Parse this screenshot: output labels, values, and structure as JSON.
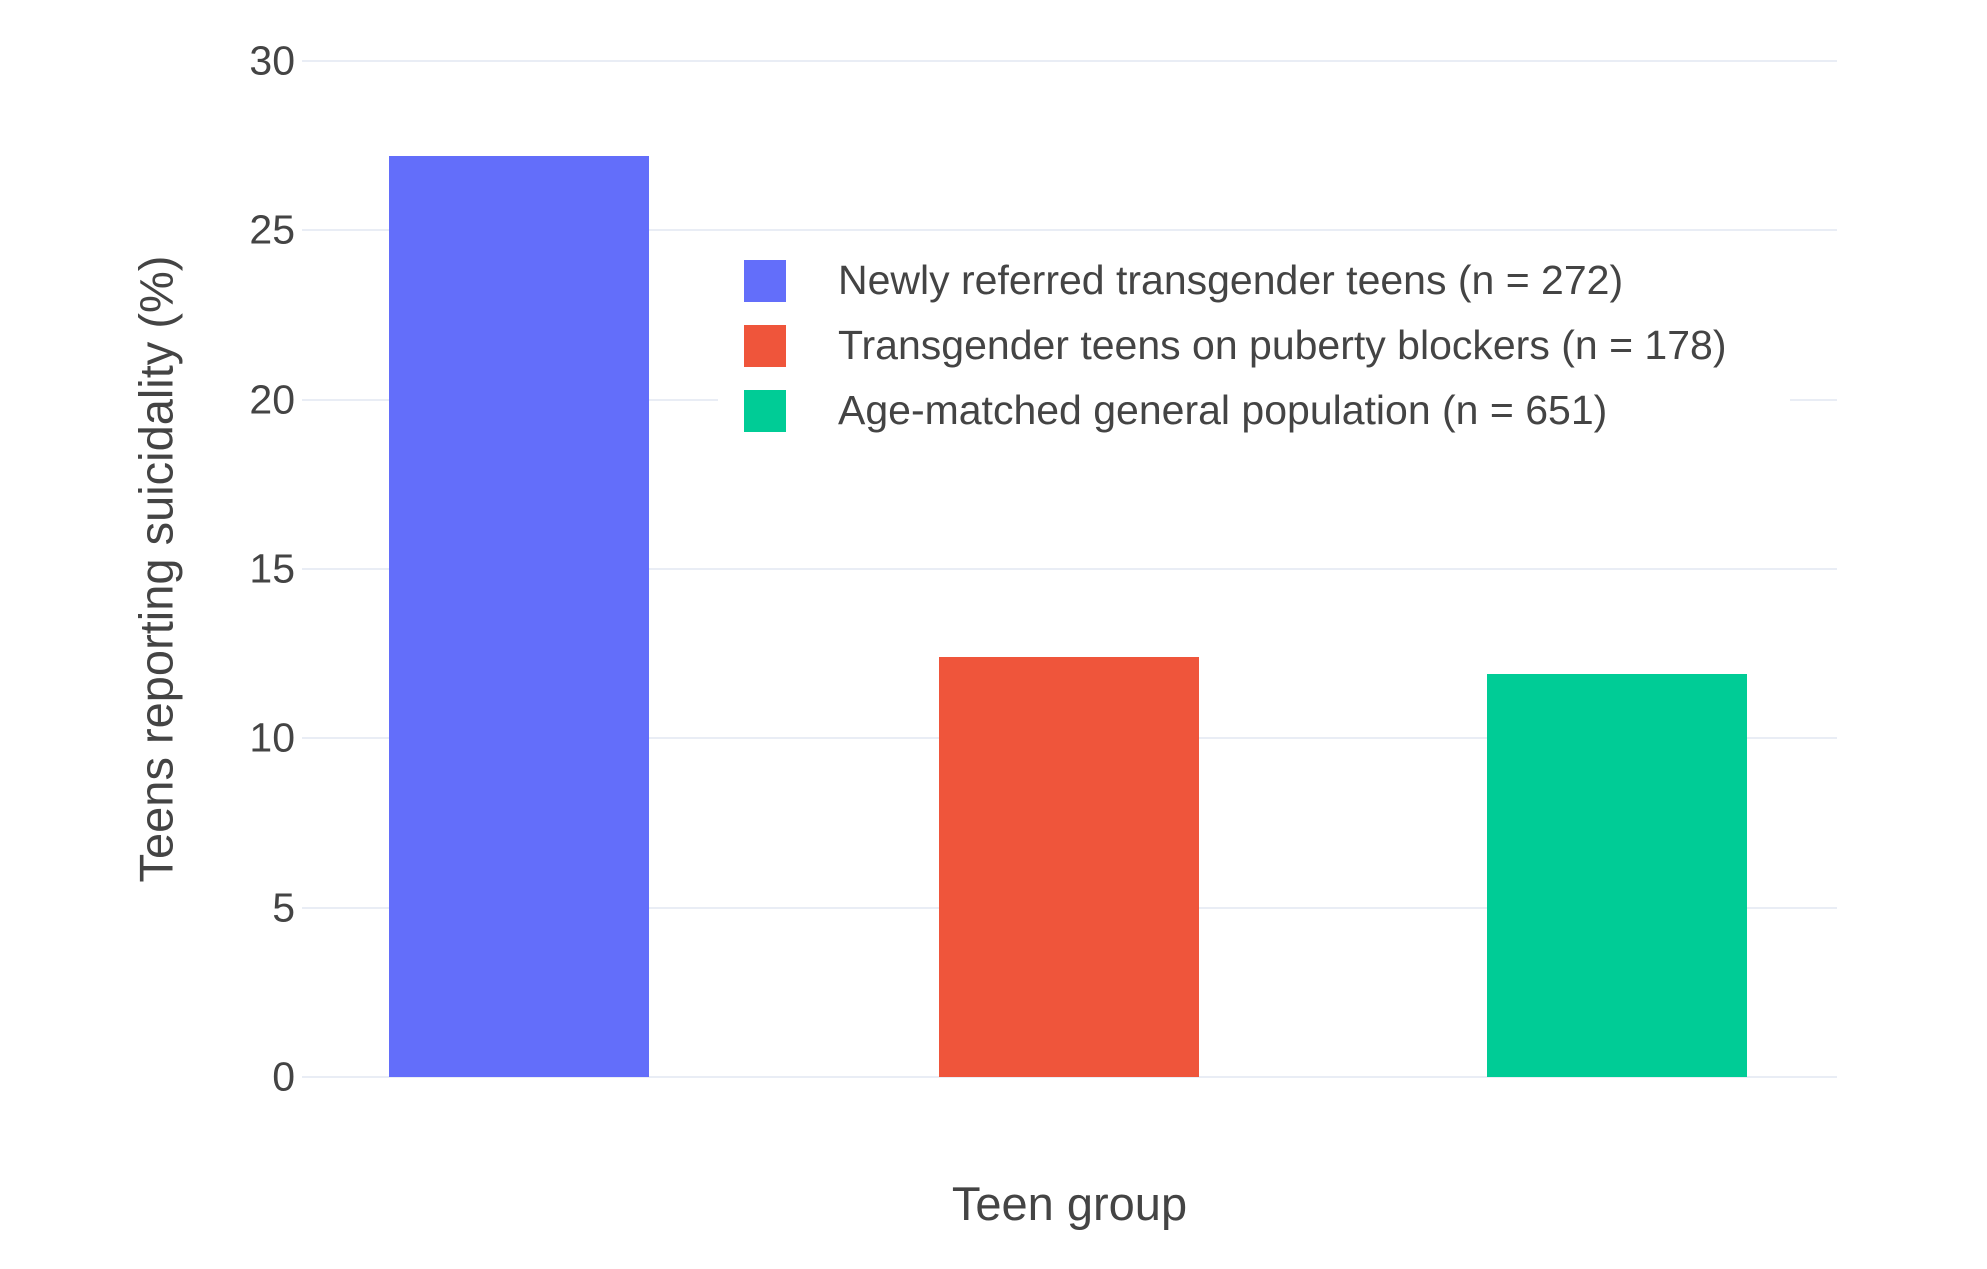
{
  "chart_data": {
    "type": "bar",
    "title": "",
    "xlabel": "Teen group",
    "ylabel": "Teens reporting suicidality (%)",
    "ylim": [
      0,
      30
    ],
    "yticks": [
      0,
      5,
      10,
      15,
      20,
      25,
      30
    ],
    "grid": true,
    "legend_position": "inside-top-center",
    "background_color": "#ffffff",
    "gridline_color": "#e9edf5",
    "text_color": "#444444",
    "series": [
      {
        "label": "Newly referred transgender teens (n = 272)",
        "value": 27.2,
        "color": "#636EFA"
      },
      {
        "label": "Transgender teens on puberty blockers (n = 178)",
        "value": 12.4,
        "color": "#EF553B"
      },
      {
        "label": "Age-matched general population (n = 651)",
        "value": 11.9,
        "color": "#00CC96"
      }
    ]
  }
}
